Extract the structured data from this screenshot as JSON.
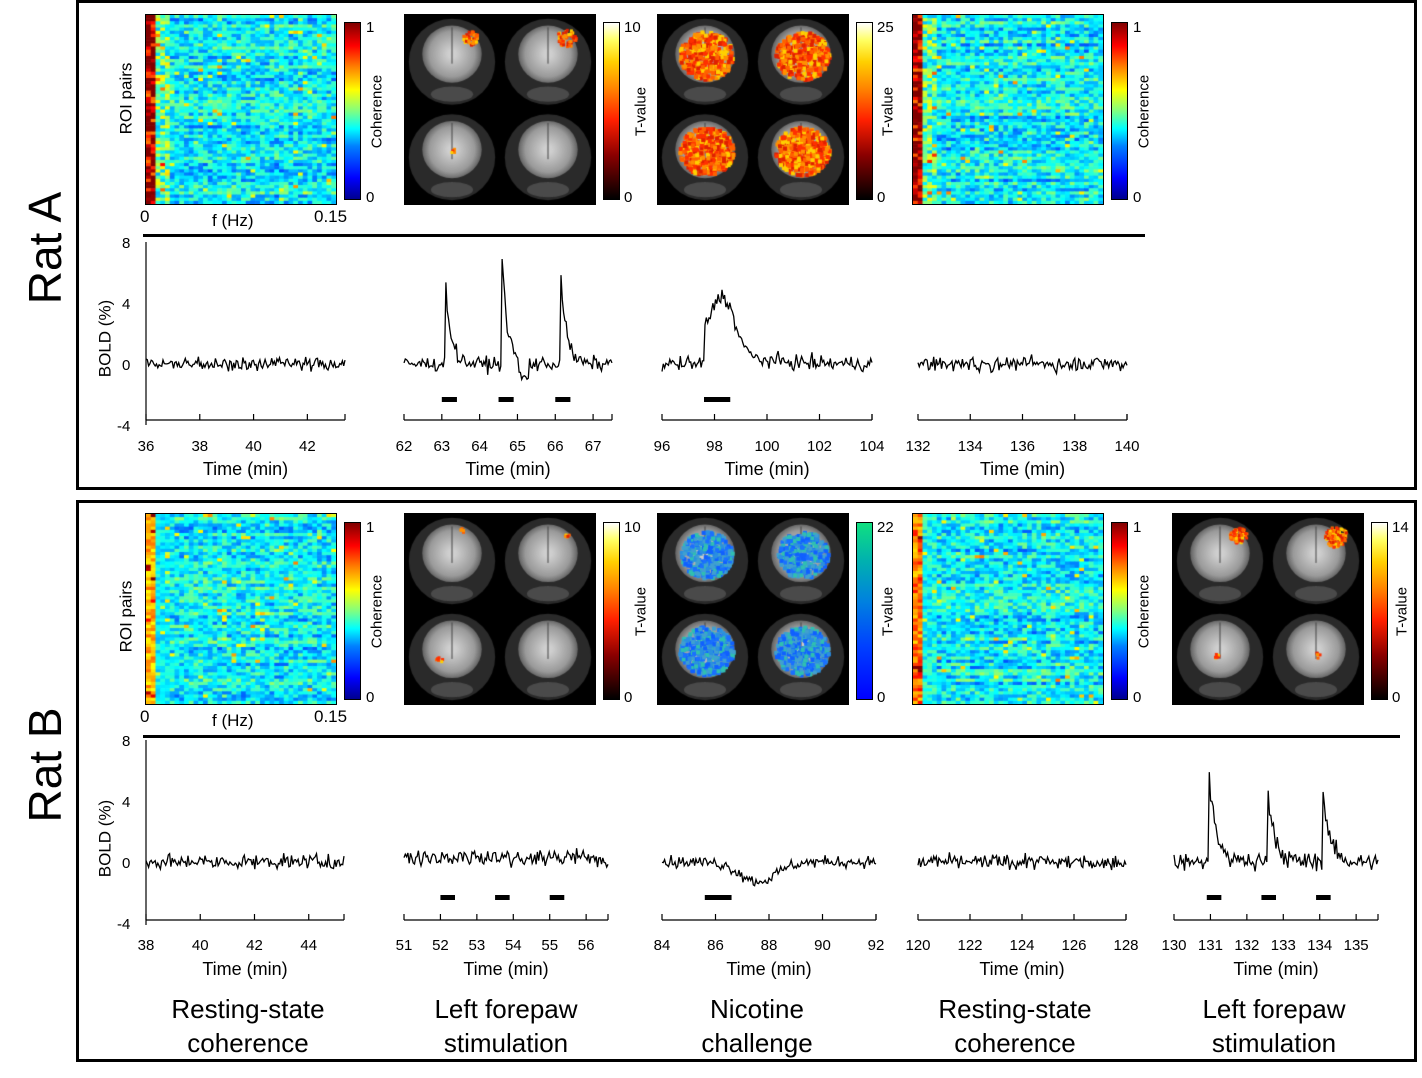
{
  "rats": [
    {
      "label": "Rat A",
      "heatmap_xlabel": "f (Hz)",
      "heatmap_ylabel": "ROI pairs",
      "heatmap_xticks": [
        "0",
        "0.15"
      ],
      "colorbars": [
        {
          "label": "Coherence",
          "max": "1",
          "min": "0"
        },
        {
          "label": "T-value",
          "max": "10",
          "min": "0"
        },
        {
          "label": "T-value",
          "max": "25",
          "min": "0"
        },
        {
          "label": "Coherence",
          "max": "1",
          "min": "0"
        }
      ],
      "bold_ylabel": "BOLD (%)",
      "bold_yticks": [
        "8",
        "4",
        "0",
        "-4"
      ],
      "time_label": "Time (min)",
      "plots": [
        {
          "ticks": [
            "36",
            "38",
            "40",
            "42"
          ]
        },
        {
          "ticks": [
            "62",
            "63",
            "64",
            "65",
            "66",
            "67"
          ]
        },
        {
          "ticks": [
            "96",
            "98",
            "100",
            "102",
            "104"
          ]
        },
        {
          "ticks": [
            "132",
            "134",
            "136",
            "138",
            "140"
          ]
        }
      ]
    },
    {
      "label": "Rat B",
      "heatmap_xlabel": "f (Hz)",
      "heatmap_ylabel": "ROI pairs",
      "heatmap_xticks": [
        "0",
        "0.15"
      ],
      "colorbars": [
        {
          "label": "Coherence",
          "max": "1",
          "min": "0"
        },
        {
          "label": "T-value",
          "max": "10",
          "min": "0"
        },
        {
          "label": "T-value",
          "max": "22",
          "min": "0"
        },
        {
          "label": "Coherence",
          "max": "1",
          "min": "0"
        },
        {
          "label": "T-value",
          "max": "14",
          "min": "0"
        }
      ],
      "bold_ylabel": "BOLD (%)",
      "bold_yticks": [
        "8",
        "4",
        "0",
        "-4"
      ],
      "time_label": "Time (min)",
      "plots": [
        {
          "ticks": [
            "38",
            "40",
            "42",
            "44"
          ]
        },
        {
          "ticks": [
            "51",
            "52",
            "53",
            "54",
            "55",
            "56"
          ]
        },
        {
          "ticks": [
            "84",
            "86",
            "88",
            "90",
            "92"
          ]
        },
        {
          "ticks": [
            "120",
            "122",
            "124",
            "126",
            "128"
          ]
        },
        {
          "ticks": [
            "130",
            "131",
            "132",
            "133",
            "134",
            "135"
          ]
        }
      ]
    }
  ],
  "conditions": [
    "Resting-state\ncoherence",
    "Left forepaw\nstimulation",
    "Nicotine\nchallenge",
    "Resting-state\ncoherence",
    "Left forepaw\nstimulation"
  ],
  "colors": {
    "trace": "#000000",
    "border": "#000000"
  }
}
